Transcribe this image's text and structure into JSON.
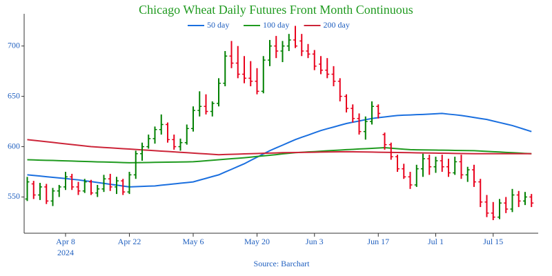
{
  "chart_data": {
    "type": "ohlc",
    "title": "Chicago Wheat Daily Futures Front Month Continuous",
    "source": "Source: Barchart",
    "x": [
      "2024-03-28",
      "2024-04-01",
      "2024-04-02",
      "2024-04-03",
      "2024-04-04",
      "2024-04-05",
      "2024-04-08",
      "2024-04-09",
      "2024-04-10",
      "2024-04-11",
      "2024-04-12",
      "2024-04-15",
      "2024-04-16",
      "2024-04-17",
      "2024-04-18",
      "2024-04-19",
      "2024-04-22",
      "2024-04-23",
      "2024-04-24",
      "2024-04-25",
      "2024-04-26",
      "2024-04-29",
      "2024-04-30",
      "2024-05-01",
      "2024-05-02",
      "2024-05-03",
      "2024-05-06",
      "2024-05-07",
      "2024-05-08",
      "2024-05-09",
      "2024-05-10",
      "2024-05-13",
      "2024-05-14",
      "2024-05-15",
      "2024-05-16",
      "2024-05-17",
      "2024-05-20",
      "2024-05-21",
      "2024-05-22",
      "2024-05-23",
      "2024-05-24",
      "2024-05-28",
      "2024-05-29",
      "2024-05-30",
      "2024-05-31",
      "2024-06-03",
      "2024-06-04",
      "2024-06-05",
      "2024-06-06",
      "2024-06-07",
      "2024-06-10",
      "2024-06-11",
      "2024-06-12",
      "2024-06-13",
      "2024-06-14",
      "2024-06-17",
      "2024-06-18",
      "2024-06-20",
      "2024-06-21",
      "2024-06-24",
      "2024-06-25",
      "2024-06-26",
      "2024-06-27",
      "2024-06-28",
      "2024-07-01",
      "2024-07-02",
      "2024-07-03",
      "2024-07-05",
      "2024-07-08",
      "2024-07-09",
      "2024-07-10",
      "2024-07-11",
      "2024-07-12",
      "2024-07-15",
      "2024-07-16",
      "2024-07-17",
      "2024-07-18",
      "2024-07-19",
      "2024-07-22",
      "2024-07-23"
    ],
    "ohlc": [
      [
        548,
        570,
        546,
        565
      ],
      [
        563,
        566,
        548,
        552
      ],
      [
        552,
        564,
        547,
        560
      ],
      [
        560,
        563,
        543,
        546
      ],
      [
        546,
        559,
        541,
        556
      ],
      [
        556,
        562,
        550,
        560
      ],
      [
        560,
        575,
        557,
        570
      ],
      [
        570,
        573,
        557,
        560
      ],
      [
        560,
        565,
        552,
        556
      ],
      [
        556,
        568,
        554,
        565
      ],
      [
        565,
        567,
        552,
        554
      ],
      [
        554,
        562,
        550,
        558
      ],
      [
        558,
        572,
        555,
        568
      ],
      [
        568,
        573,
        556,
        560
      ],
      [
        560,
        570,
        553,
        566
      ],
      [
        566,
        568,
        552,
        555
      ],
      [
        555,
        575,
        553,
        572
      ],
      [
        572,
        596,
        568,
        593
      ],
      [
        593,
        604,
        586,
        600
      ],
      [
        600,
        612,
        598,
        608
      ],
      [
        608,
        620,
        603,
        617
      ],
      [
        617,
        632,
        612,
        622
      ],
      [
        622,
        624,
        604,
        607
      ],
      [
        607,
        612,
        597,
        600
      ],
      [
        600,
        608,
        596,
        604
      ],
      [
        604,
        622,
        602,
        618
      ],
      [
        618,
        640,
        615,
        636
      ],
      [
        636,
        655,
        630,
        640
      ],
      [
        640,
        652,
        632,
        635
      ],
      [
        635,
        645,
        630,
        643
      ],
      [
        643,
        668,
        640,
        663
      ],
      [
        663,
        695,
        660,
        690
      ],
      [
        690,
        705,
        678,
        683
      ],
      [
        683,
        700,
        668,
        672
      ],
      [
        672,
        690,
        663,
        668
      ],
      [
        668,
        685,
        660,
        665
      ],
      [
        665,
        678,
        652,
        655
      ],
      [
        655,
        690,
        653,
        686
      ],
      [
        686,
        706,
        680,
        700
      ],
      [
        700,
        710,
        688,
        695
      ],
      [
        695,
        705,
        684,
        700
      ],
      [
        700,
        712,
        695,
        706
      ],
      [
        706,
        720,
        698,
        700
      ],
      [
        705,
        712,
        690,
        695
      ],
      [
        695,
        702,
        688,
        692
      ],
      [
        692,
        696,
        676,
        680
      ],
      [
        682,
        690,
        672,
        676
      ],
      [
        676,
        688,
        668,
        672
      ],
      [
        672,
        680,
        660,
        665
      ],
      [
        665,
        668,
        645,
        650
      ],
      [
        650,
        652,
        634,
        638
      ],
      [
        638,
        642,
        624,
        628
      ],
      [
        628,
        633,
        612,
        615
      ],
      [
        615,
        630,
        607,
        625
      ],
      [
        625,
        645,
        622,
        640
      ],
      [
        640,
        642,
        628,
        633
      ],
      [
        612,
        614,
        597,
        602
      ],
      [
        602,
        604,
        587,
        590
      ],
      [
        590,
        592,
        575,
        578
      ],
      [
        578,
        583,
        568,
        570
      ],
      [
        570,
        575,
        558,
        562
      ],
      [
        562,
        582,
        560,
        578
      ],
      [
        578,
        593,
        570,
        588
      ],
      [
        588,
        592,
        572,
        580
      ],
      [
        580,
        590,
        574,
        586
      ],
      [
        586,
        592,
        575,
        580
      ],
      [
        580,
        588,
        570,
        574
      ],
      [
        574,
        590,
        572,
        585
      ],
      [
        585,
        592,
        568,
        572
      ],
      [
        572,
        580,
        565,
        577
      ],
      [
        577,
        582,
        560,
        565
      ],
      [
        565,
        568,
        540,
        545
      ],
      [
        545,
        552,
        530,
        534
      ],
      [
        534,
        545,
        527,
        530
      ],
      [
        530,
        548,
        528,
        544
      ],
      [
        544,
        550,
        534,
        538
      ],
      [
        538,
        558,
        535,
        552
      ],
      [
        552,
        556,
        540,
        546
      ],
      [
        546,
        555,
        542,
        550
      ],
      [
        550,
        553,
        540,
        544
      ]
    ],
    "up_color": "#008000",
    "down_color": "#e8001c",
    "series": [
      {
        "name": "50 day",
        "color": "#1a6fdf",
        "values": [
          572,
          571.4,
          570.8,
          570.1,
          569.5,
          568.9,
          568.3,
          567.6,
          567,
          566.1,
          565.3,
          564.4,
          563.5,
          562.6,
          561.8,
          560.9,
          560,
          560.3,
          560.5,
          560.8,
          561,
          561.7,
          562.3,
          563,
          563.7,
          564.3,
          565,
          566.8,
          568.5,
          570.3,
          572,
          574.8,
          577.5,
          580.3,
          583,
          586.3,
          589.5,
          592.8,
          596,
          598.8,
          601.5,
          604.3,
          607,
          609.3,
          611.5,
          613.8,
          616,
          617.8,
          619.5,
          621.3,
          623,
          624.3,
          625.5,
          626.8,
          628,
          628.8,
          629.5,
          630.3,
          631,
          631.3,
          631.5,
          631.8,
          632,
          632.3,
          632.7,
          633,
          632.3,
          631.7,
          631,
          630,
          629,
          628,
          627,
          625.5,
          624,
          622.5,
          621,
          619,
          617,
          615
        ]
      },
      {
        "name": "100 day",
        "color": "#1f9a1f",
        "values": [
          587,
          586.8,
          586.6,
          586.4,
          586.3,
          586.1,
          585.9,
          585.7,
          585.5,
          585.3,
          585.1,
          584.9,
          584.8,
          584.6,
          584.4,
          584.2,
          584,
          584.1,
          584.2,
          584.3,
          584.4,
          584.5,
          584.6,
          584.7,
          584.8,
          584.9,
          585,
          585.5,
          586,
          586.5,
          587,
          587.5,
          588,
          588.5,
          589,
          589.6,
          590.3,
          590.9,
          591.5,
          592.1,
          592.8,
          593.4,
          594,
          594.4,
          594.8,
          595.1,
          595.5,
          595.9,
          596.3,
          596.6,
          597,
          597.3,
          597.7,
          598,
          598.3,
          598.7,
          599,
          598.5,
          598,
          597.5,
          597,
          596.9,
          596.8,
          596.7,
          596.6,
          596.5,
          596.4,
          596.3,
          596.2,
          596.1,
          596,
          595.7,
          595.3,
          595,
          594.7,
          594.3,
          594,
          593.7,
          593.3,
          593
        ]
      },
      {
        "name": "200 day",
        "color": "#cc2438",
        "values": [
          607,
          606.3,
          605.6,
          604.9,
          604.2,
          603.5,
          602.8,
          602.1,
          601.4,
          600.7,
          600,
          599.6,
          599.2,
          598.8,
          598.4,
          598,
          597.6,
          597.2,
          596.8,
          596.4,
          596,
          595.6,
          595.2,
          594.8,
          594.4,
          594,
          593.6,
          593.2,
          592.8,
          592.4,
          592,
          592.2,
          592.4,
          592.6,
          592.8,
          593,
          593.2,
          593.4,
          593.6,
          593.8,
          594,
          594.1,
          594.2,
          594.3,
          594.4,
          594.5,
          594.6,
          594.7,
          594.8,
          594.9,
          595,
          594.9,
          594.8,
          594.7,
          594.6,
          594.5,
          594.4,
          594.3,
          594.2,
          594.1,
          594,
          593.9,
          593.8,
          593.7,
          593.6,
          593.5,
          593.4,
          593.3,
          593.2,
          593.1,
          593,
          593,
          593,
          593,
          593,
          593,
          593,
          593,
          593,
          593
        ]
      }
    ],
    "ylim": [
      514,
      732
    ],
    "yticks": [
      550,
      600,
      650,
      700
    ],
    "xticks": [
      {
        "value": "2024-04-08",
        "label": "Apr 8"
      },
      {
        "value": "2024-04-22",
        "label": "Apr 22"
      },
      {
        "value": "2024-05-06",
        "label": "May 6"
      },
      {
        "value": "2024-05-20",
        "label": "May 20"
      },
      {
        "value": "2024-06-03",
        "label": "Jun 3"
      },
      {
        "value": "2024-06-17",
        "label": "Jun 17"
      },
      {
        "value": "2024-07-01",
        "label": "Jul 1"
      },
      {
        "value": "2024-07-15",
        "label": "Jul 15"
      }
    ],
    "x_year_label": "2024",
    "legend": "top"
  }
}
